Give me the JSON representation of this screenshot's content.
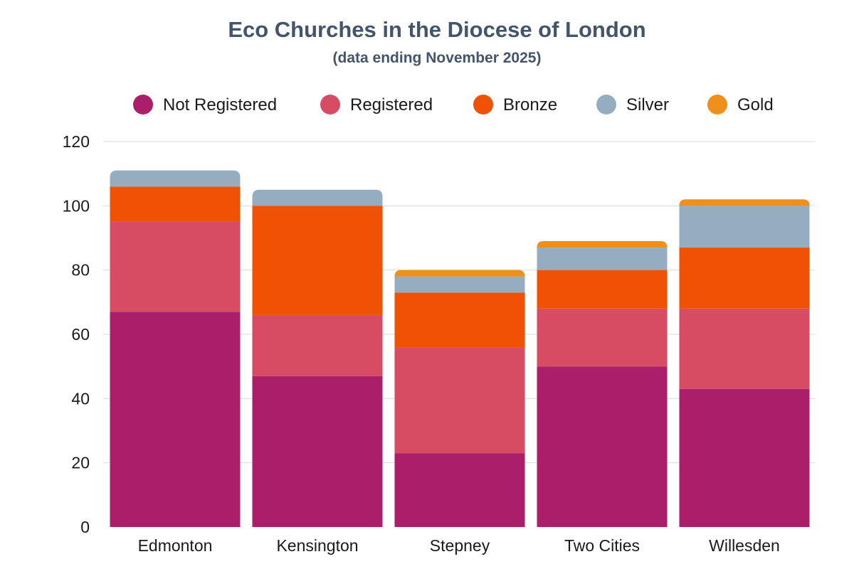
{
  "chart_data": {
    "type": "bar",
    "stacked": true,
    "title": "Eco Churches in the Diocese of London",
    "subtitle": "(data ending November 2025)",
    "xlabel": "",
    "ylabel": "",
    "ylim": [
      0,
      120
    ],
    "yticks": [
      0,
      20,
      40,
      60,
      80,
      100,
      120
    ],
    "grid": true,
    "legend_position": "top",
    "categories": [
      "Edmonton",
      "Kensington",
      "Stepney",
      "Two Cities",
      "Willesden"
    ],
    "series": [
      {
        "name": "Not Registered",
        "color": "#aa1f68",
        "values": [
          67,
          47,
          23,
          50,
          43
        ]
      },
      {
        "name": "Registered",
        "color": "#d64c63",
        "values": [
          28,
          19,
          33,
          18,
          25
        ]
      },
      {
        "name": "Bronze",
        "color": "#f05205",
        "values": [
          11,
          34,
          17,
          12,
          19
        ]
      },
      {
        "name": "Silver",
        "color": "#94adc0",
        "values": [
          5,
          5,
          5,
          7,
          13
        ]
      },
      {
        "name": "Gold",
        "color": "#f0901c",
        "values": [
          0,
          0,
          2,
          2,
          2
        ]
      }
    ]
  }
}
